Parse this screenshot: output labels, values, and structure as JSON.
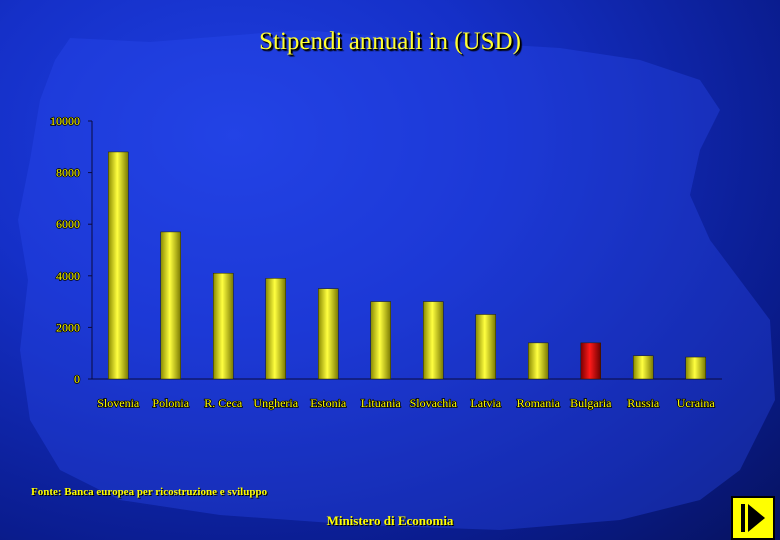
{
  "title": "Stipendi annuali in (USD)",
  "source": "Fonte: Banca europea per ricostruzione e sviluppo",
  "footer": "Ministero di Economia",
  "nav_icon": "skip-to-end-icon",
  "colors": {
    "background": "#1530c8",
    "text": "#ffff00",
    "bar": "#e6e600",
    "bar_highlight": "#e00000"
  },
  "chart_data": {
    "type": "bar",
    "title": "Stipendi annuali in (USD)",
    "xlabel": "",
    "ylabel": "",
    "ylim": [
      0,
      10000
    ],
    "yticks": [
      0,
      2000,
      4000,
      6000,
      8000,
      10000
    ],
    "grid": false,
    "legend": "none",
    "categories": [
      "Slovenia",
      "Polonia",
      "R. Ceca",
      "Ungheria",
      "Estonia",
      "Lituania",
      "Slovachia",
      "Latvia",
      "Romania",
      "Bulgaria",
      "Russia",
      "Ucraina"
    ],
    "values": [
      8800,
      5700,
      4100,
      3900,
      3500,
      3000,
      3000,
      2500,
      1400,
      1400,
      900,
      850
    ],
    "highlight": "Bulgaria"
  }
}
